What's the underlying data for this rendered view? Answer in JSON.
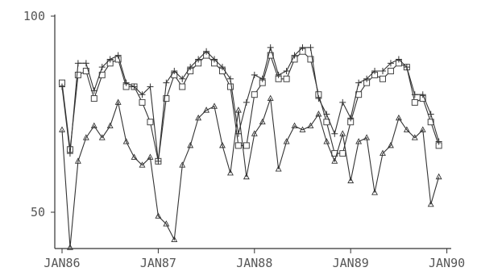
{
  "chart_data": {
    "type": "line",
    "x_start": "JAN86",
    "x_ticks": [
      "JAN86",
      "JAN87",
      "JAN88",
      "JAN89",
      "JAN90"
    ],
    "y_ticks": [
      100,
      50
    ],
    "ylim": [
      45,
      100
    ],
    "grid": false,
    "series": [
      {
        "marker": "square",
        "values": [
          83,
          66,
          85,
          86,
          79,
          85,
          88,
          89,
          82,
          82,
          78,
          73,
          63,
          79,
          85,
          82,
          86,
          88,
          90,
          88,
          86,
          82,
          67,
          67,
          80,
          83,
          90,
          84,
          84,
          89,
          91,
          89,
          80,
          73,
          65,
          65,
          73,
          80,
          83,
          85,
          84,
          86,
          88,
          87,
          78,
          79,
          73,
          67
        ]
      },
      {
        "marker": "plus",
        "values": [
          82,
          65,
          88,
          88,
          81,
          87,
          89,
          90,
          83,
          82,
          80,
          82,
          63,
          83,
          86,
          84,
          87,
          89,
          91,
          89,
          87,
          84,
          70,
          78,
          85,
          84,
          92,
          85,
          86,
          90,
          92,
          92,
          79,
          75,
          70,
          78,
          74,
          83,
          84,
          86,
          86,
          88,
          89,
          87,
          80,
          80,
          75,
          68
        ]
      },
      {
        "marker": "triangle",
        "values": [
          71,
          41,
          63,
          69,
          72,
          69,
          72,
          78,
          68,
          64,
          62,
          64,
          49,
          47,
          43,
          62,
          67,
          74,
          76,
          77,
          67,
          60,
          76,
          59,
          70,
          73,
          79,
          61,
          68,
          72,
          71,
          72,
          75,
          68,
          63,
          70,
          58,
          68,
          69,
          55,
          65,
          67,
          74,
          71,
          69,
          71,
          52,
          59
        ]
      }
    ]
  }
}
